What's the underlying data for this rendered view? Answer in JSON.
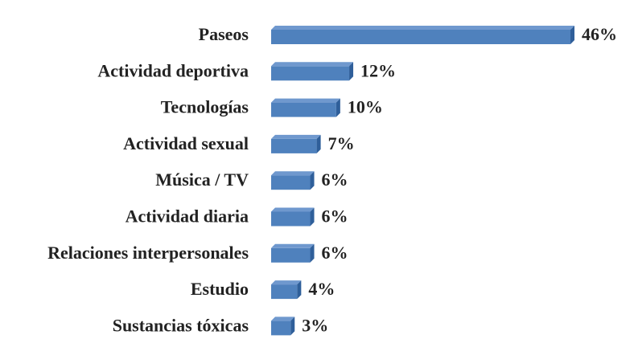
{
  "chart_data": {
    "type": "bar",
    "orientation": "horizontal",
    "style": "3d",
    "categories": [
      "Paseos",
      "Actividad deportiva",
      "Tecnologías",
      "Actividad sexual",
      "Música / TV",
      "Actividad diaria",
      "Relaciones interpersonales",
      "Estudio",
      "Sustancias tóxicas"
    ],
    "values": [
      46,
      12,
      10,
      7,
      6,
      6,
      6,
      4,
      3
    ],
    "value_labels": [
      "46%",
      "12%",
      "10%",
      "7%",
      "6%",
      "6%",
      "6%",
      "4%",
      "3%"
    ],
    "unit": "%",
    "title": "",
    "xlabel": "",
    "ylabel": "",
    "xlim": [
      0,
      46
    ],
    "grid": false,
    "legend": "none",
    "colors": {
      "bar_front": "#4F81BD",
      "bar_top": "#6F98CE",
      "bar_side": "#2F5F9A",
      "text": "#222222"
    }
  }
}
